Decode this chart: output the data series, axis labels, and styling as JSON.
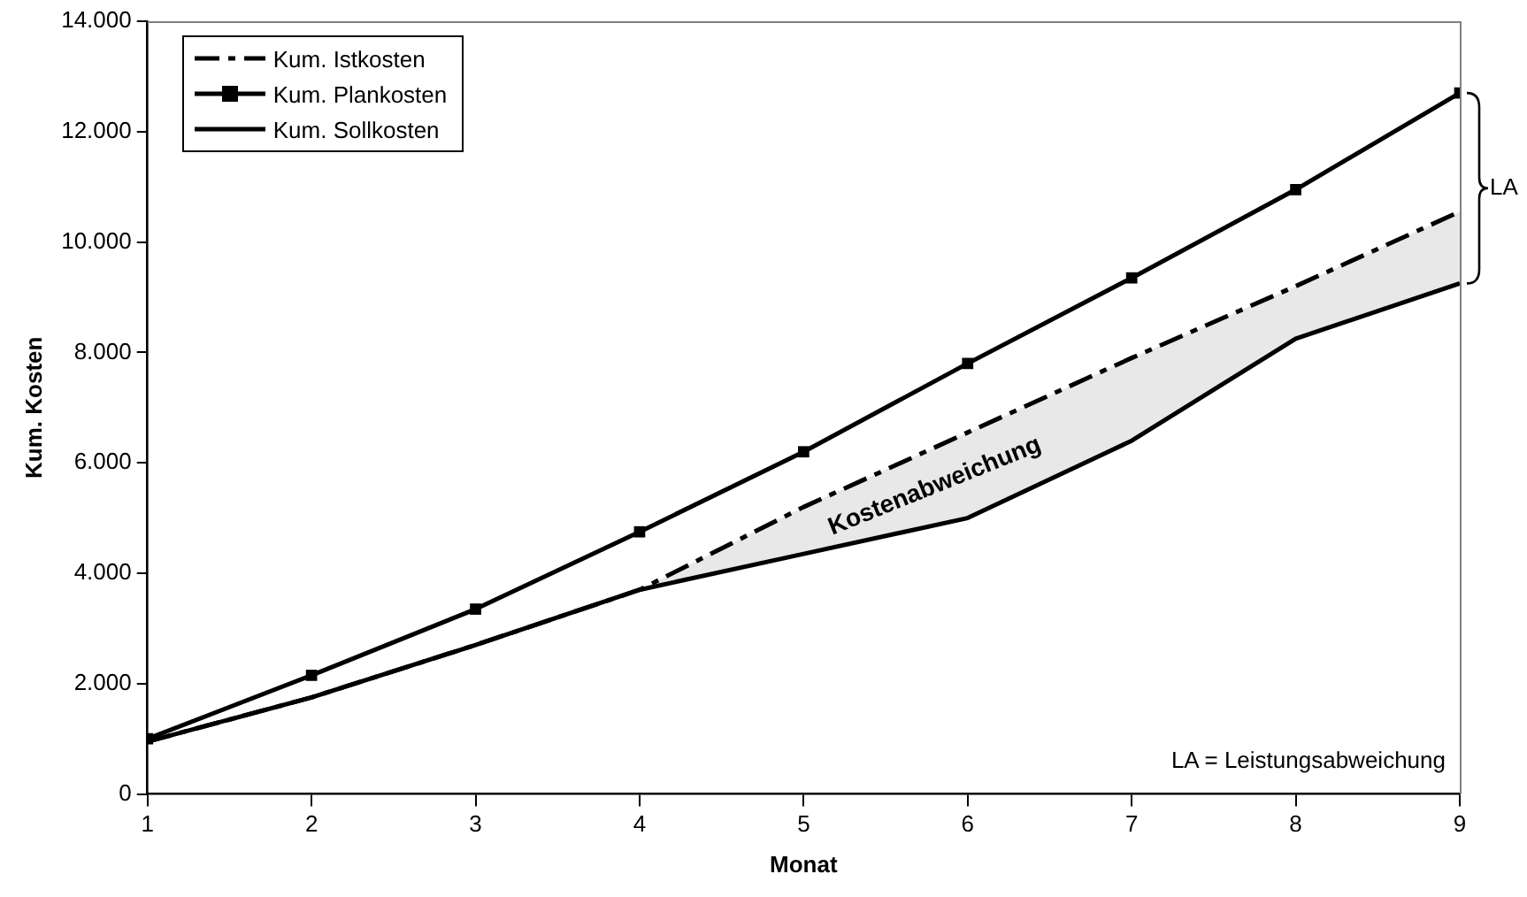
{
  "chart_data": {
    "type": "line",
    "xlabel": "Monat",
    "ylabel": "Kum. Kosten",
    "x": [
      1,
      2,
      3,
      4,
      5,
      6,
      7,
      8,
      9
    ],
    "xlim": [
      1,
      9
    ],
    "xticks": [
      1,
      2,
      3,
      4,
      5,
      6,
      7,
      8,
      9
    ],
    "ylim": [
      0,
      14000
    ],
    "yticks": [
      0,
      {
        "value": 2000,
        "label": "2.000"
      },
      {
        "value": 4000,
        "label": "4.000"
      },
      {
        "value": 6000,
        "label": "6.000"
      },
      {
        "value": 8000,
        "label": "8.000"
      },
      {
        "value": 10000,
        "label": "10.000"
      },
      {
        "value": 12000,
        "label": "12.000"
      },
      {
        "value": 14000,
        "label": "14.000"
      }
    ],
    "series": [
      {
        "name": "Kum. Istkosten",
        "color": "#000000",
        "line_style": "dashed",
        "marker": "none",
        "values": [
          950,
          1750,
          2700,
          3700,
          5200,
          6550,
          7900,
          9200,
          10550
        ],
        "lower": [
          null,
          null,
          null,
          3700,
          4350,
          5000,
          6400,
          8250,
          9250
        ],
        "upper": [
          null,
          null,
          null,
          3700,
          5200,
          6550,
          7900,
          9200,
          10550
        ]
      },
      {
        "name": "Kum. Plankosten",
        "color": "#000000",
        "line_style": "solid",
        "marker": "square",
        "values": [
          1000,
          2150,
          3350,
          4750,
          6200,
          7800,
          9350,
          10950,
          12700
        ]
      },
      {
        "name": "Kum. Sollkosten",
        "color": "#000000",
        "line_style": "solid",
        "marker": "none",
        "values": [
          950,
          1750,
          2700,
          3700,
          4350,
          5000,
          6400,
          8250,
          9250
        ]
      }
    ],
    "annotations": [
      "Kostenabweichung",
      "LA",
      "LA = Leistungsabweichung"
    ],
    "grid": false,
    "legend": "top left"
  }
}
